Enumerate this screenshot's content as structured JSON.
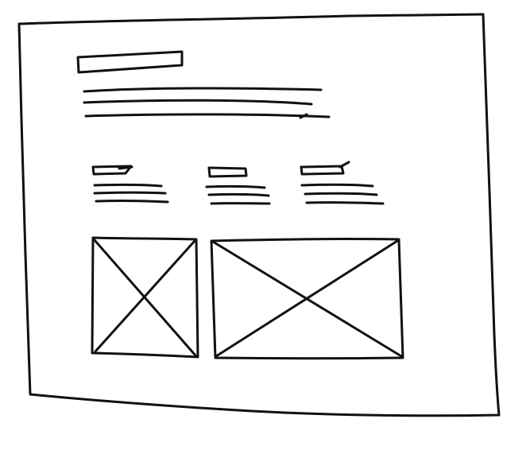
{
  "sketch": {
    "ink_color": "#111111",
    "paper_color": "#ffffff",
    "hero": {
      "title_placeholder": "title-block",
      "text_lines": 3
    },
    "feature_columns": [
      {
        "heading_placeholder": "heading-block",
        "text_lines": 3
      },
      {
        "heading_placeholder": "heading-block",
        "text_lines": 3
      },
      {
        "heading_placeholder": "heading-block",
        "text_lines": 3
      }
    ],
    "image_placeholders": [
      {
        "kind": "image-placeholder"
      },
      {
        "kind": "image-placeholder"
      }
    ]
  }
}
